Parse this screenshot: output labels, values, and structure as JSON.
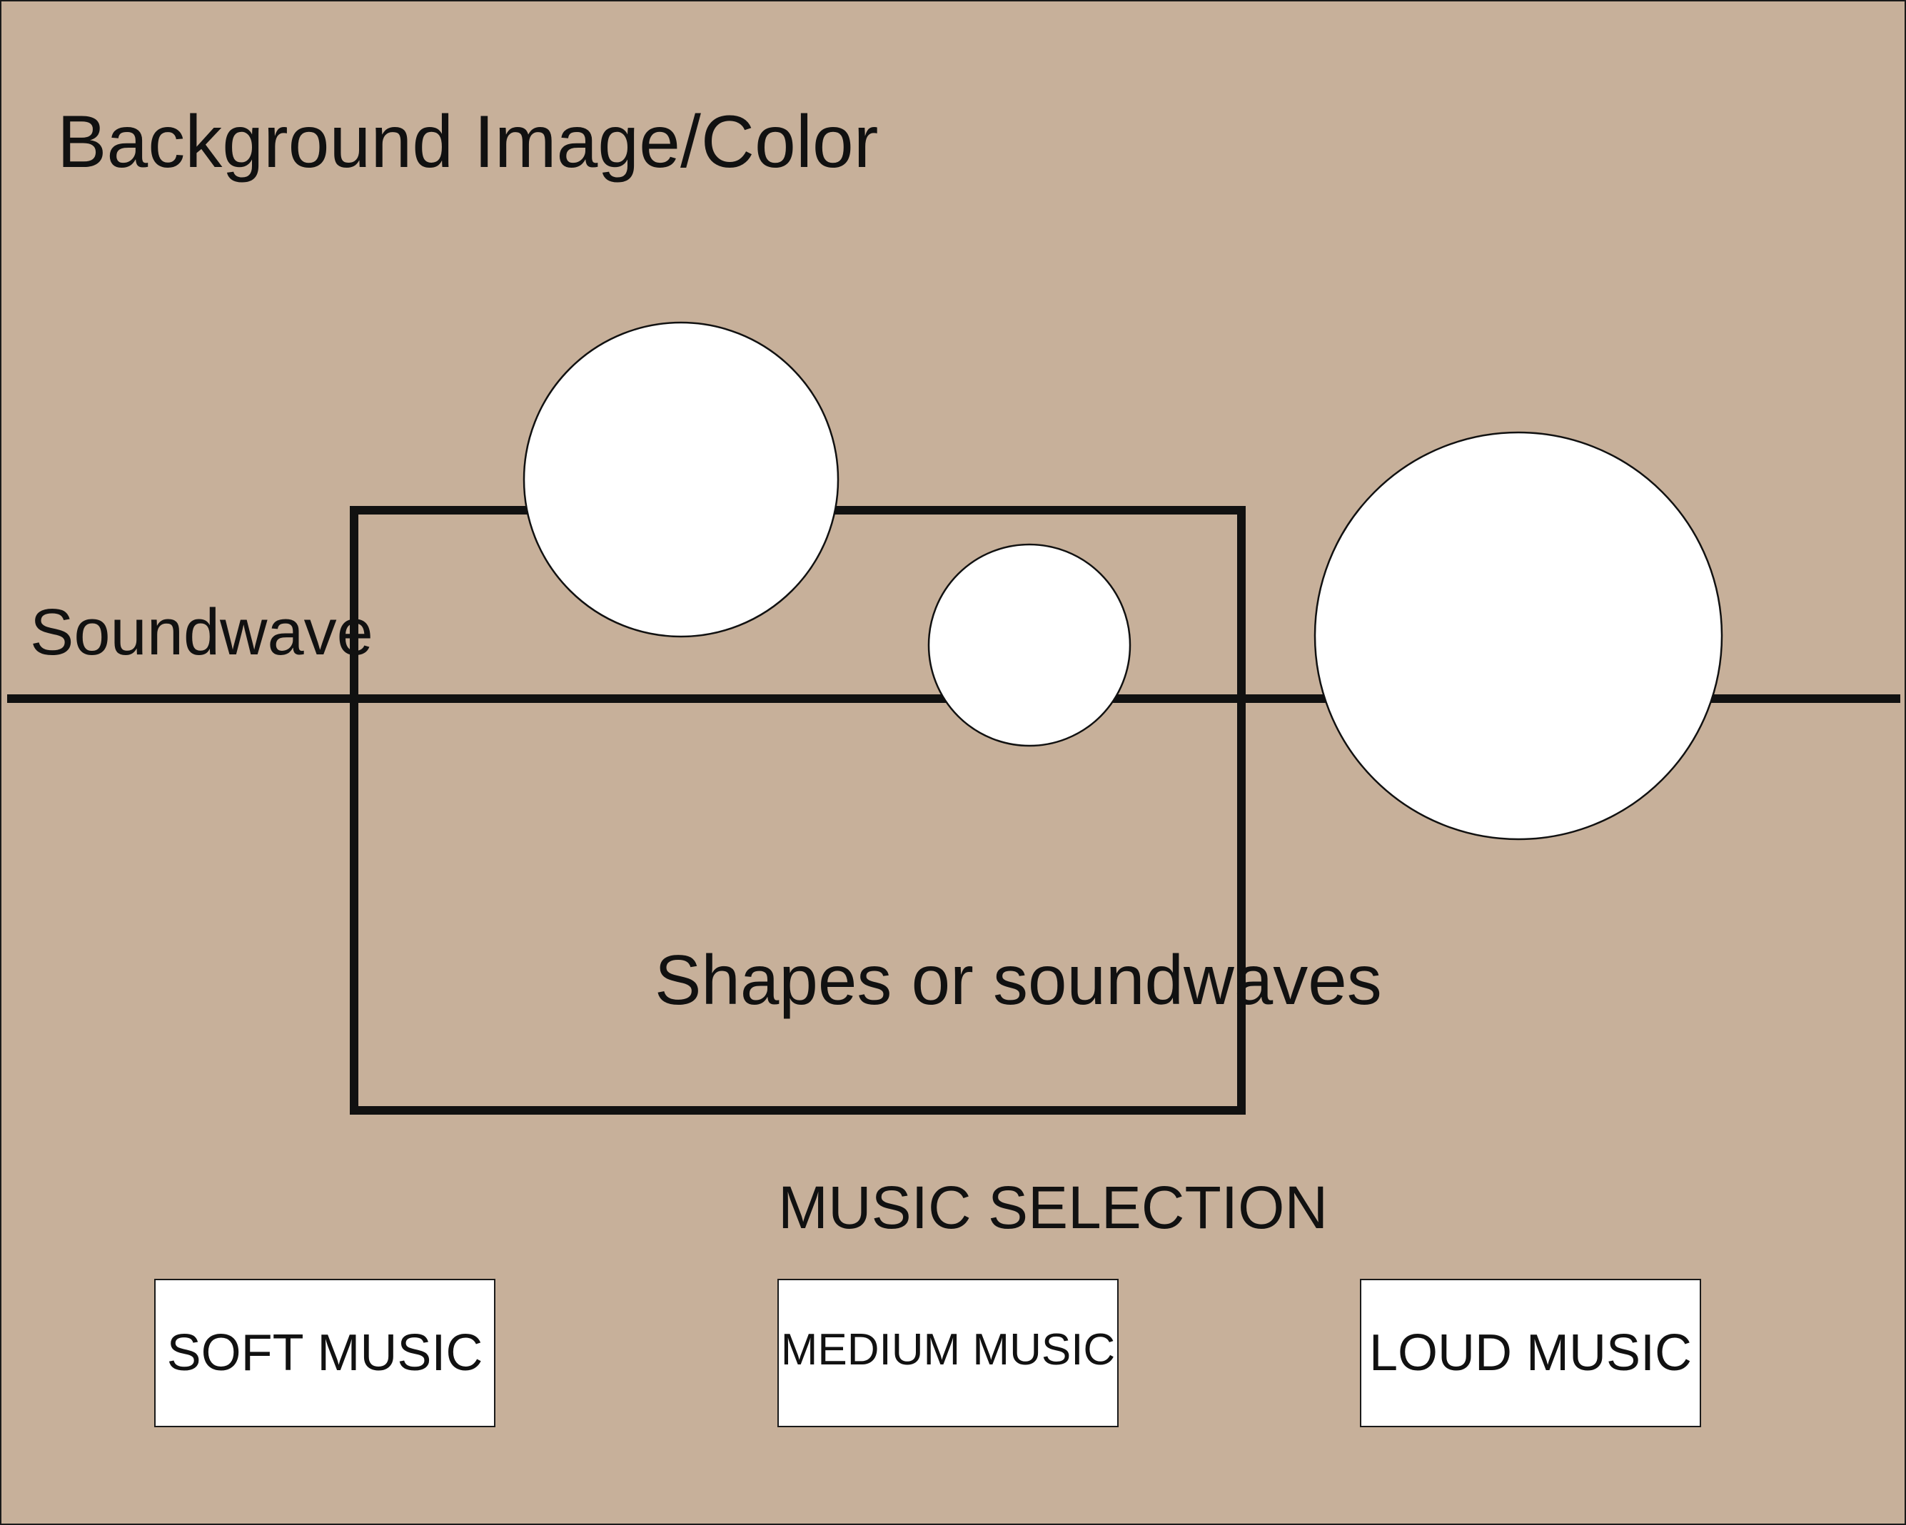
{
  "colors": {
    "background": "#c7b09a",
    "stroke": "#111111",
    "circle_fill": "#ffffff",
    "button_fill": "#ffffff"
  },
  "labels": {
    "background": "Background Image/Color",
    "soundwave": "Soundwave",
    "shapes": "Shapes or soundwaves",
    "music_selection": "MUSIC SELECTION"
  },
  "buttons": {
    "soft": "SOFT MUSIC",
    "medium": "MEDIUM MUSIC",
    "loud": "LOUD MUSIC"
  }
}
